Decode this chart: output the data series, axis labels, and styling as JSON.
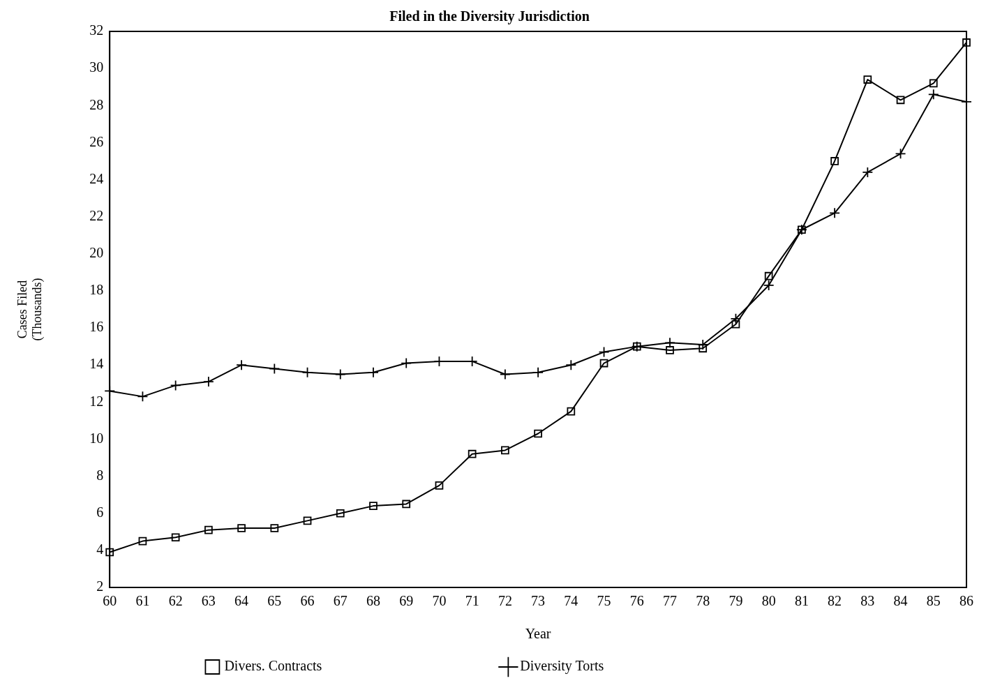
{
  "chart_data": {
    "type": "line",
    "title": "Filed in the Diversity Jurisdiction",
    "xlabel": "Year",
    "ylabel": "Cases Filed\n(Thousands)",
    "categories": [
      "60",
      "61",
      "62",
      "63",
      "64",
      "65",
      "66",
      "67",
      "68",
      "69",
      "70",
      "71",
      "72",
      "73",
      "74",
      "75",
      "76",
      "77",
      "78",
      "79",
      "80",
      "81",
      "82",
      "83",
      "84",
      "85",
      "86"
    ],
    "series": [
      {
        "name": "Divers. Contracts",
        "color": "#000000",
        "marker": "square",
        "values": [
          3.9,
          4.5,
          4.7,
          5.1,
          5.2,
          5.2,
          5.6,
          6.0,
          6.4,
          6.5,
          7.5,
          9.2,
          9.4,
          10.3,
          11.5,
          14.1,
          15.0,
          14.8,
          14.9,
          16.2,
          18.8,
          21.3,
          25.0,
          29.4,
          28.3,
          29.2,
          31.4
        ]
      },
      {
        "name": "Diversity Torts",
        "color": "#000000",
        "marker": "cross",
        "values": [
          12.6,
          12.3,
          12.9,
          13.1,
          14.0,
          13.8,
          13.6,
          13.5,
          13.6,
          14.1,
          14.2,
          14.2,
          13.5,
          13.6,
          14.0,
          14.7,
          15.0,
          15.2,
          15.1,
          16.5,
          18.3,
          21.3,
          22.2,
          24.4,
          25.4,
          28.6,
          28.2
        ]
      }
    ],
    "ylim": [
      2,
      32
    ],
    "yticks": [
      2,
      4,
      6,
      8,
      10,
      12,
      14,
      16,
      18,
      20,
      22,
      24,
      26,
      28,
      30,
      32
    ],
    "grid": false,
    "legend": "bottom"
  }
}
